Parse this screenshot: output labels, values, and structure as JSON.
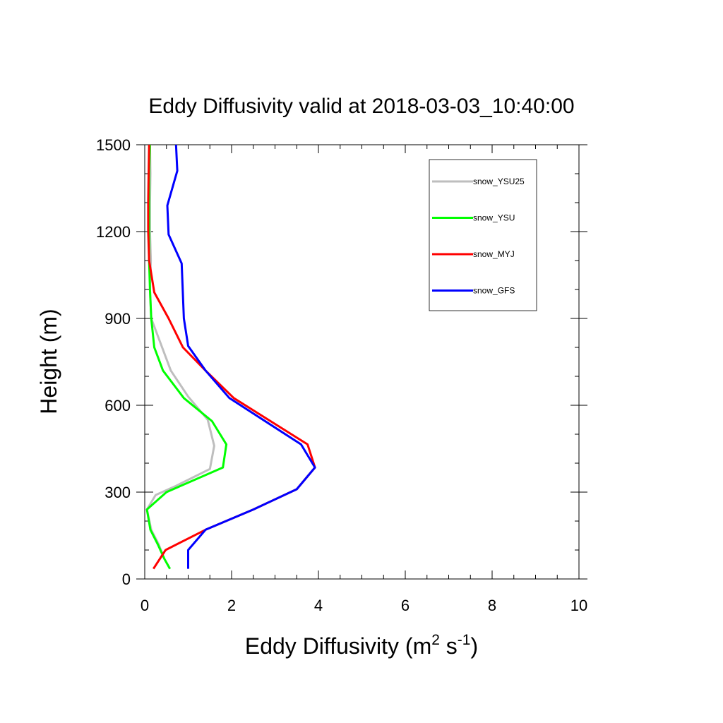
{
  "chart_data": {
    "type": "line",
    "title": "Eddy Diffusivity valid at 2018-03-03_10:40:00",
    "xlabel": {
      "prefix": "Eddy Diffusivity (m",
      "sup1": "2",
      "mid": " s",
      "sup2": "-1",
      "suffix": ")"
    },
    "ylabel": "Height (m)",
    "xlim": [
      0,
      10
    ],
    "ylim": [
      0,
      1500
    ],
    "xticks": [
      "0",
      "2",
      "4",
      "6",
      "8",
      "10"
    ],
    "yticks": [
      "0",
      "300",
      "600",
      "900",
      "1200",
      "1500"
    ],
    "grid": false,
    "legend_position": "top-right",
    "series": [
      {
        "name": "snow_YSU25",
        "color": "#bebebe",
        "points": [
          [
            0.58,
            35
          ],
          [
            0.45,
            70
          ],
          [
            0.32,
            120
          ],
          [
            0.15,
            170
          ],
          [
            0.05,
            240
          ],
          [
            0.25,
            290
          ],
          [
            0.7,
            320
          ],
          [
            1.5,
            380
          ],
          [
            1.6,
            460
          ],
          [
            1.45,
            550
          ],
          [
            1.0,
            630
          ],
          [
            0.6,
            720
          ],
          [
            0.4,
            800
          ],
          [
            0.15,
            900
          ],
          [
            0.12,
            1000
          ],
          [
            0.14,
            1100
          ],
          [
            0.12,
            1200
          ],
          [
            0.12,
            1300
          ],
          [
            0.13,
            1400
          ],
          [
            0.12,
            1500
          ]
        ]
      },
      {
        "name": "snow_YSU",
        "color": "#00ff00",
        "points": [
          [
            0.58,
            35
          ],
          [
            0.45,
            70
          ],
          [
            0.3,
            120
          ],
          [
            0.13,
            170
          ],
          [
            0.05,
            240
          ],
          [
            0.5,
            300
          ],
          [
            1.8,
            385
          ],
          [
            1.88,
            465
          ],
          [
            1.55,
            545
          ],
          [
            0.9,
            625
          ],
          [
            0.42,
            720
          ],
          [
            0.22,
            800
          ],
          [
            0.15,
            900
          ],
          [
            0.12,
            1000
          ],
          [
            0.1,
            1100
          ],
          [
            0.1,
            1200
          ],
          [
            0.1,
            1300
          ],
          [
            0.1,
            1400
          ],
          [
            0.12,
            1500
          ]
        ]
      },
      {
        "name": "snow_MYJ",
        "color": "#ff0000",
        "points": [
          [
            0.2,
            35
          ],
          [
            0.48,
            100
          ],
          [
            1.4,
            170
          ],
          [
            2.5,
            240
          ],
          [
            3.5,
            310
          ],
          [
            3.92,
            385
          ],
          [
            3.75,
            465
          ],
          [
            2.05,
            625
          ],
          [
            1.4,
            720
          ],
          [
            0.88,
            800
          ],
          [
            0.55,
            900
          ],
          [
            0.22,
            990
          ],
          [
            0.1,
            1100
          ],
          [
            0.08,
            1200
          ],
          [
            0.08,
            1300
          ],
          [
            0.09,
            1400
          ],
          [
            0.1,
            1500
          ]
        ]
      },
      {
        "name": "snow_GFS",
        "color": "#0000ff",
        "points": [
          [
            1.0,
            35
          ],
          [
            1.0,
            100
          ],
          [
            1.4,
            170
          ],
          [
            2.5,
            240
          ],
          [
            3.5,
            310
          ],
          [
            3.92,
            385
          ],
          [
            3.6,
            465
          ],
          [
            1.95,
            625
          ],
          [
            1.4,
            720
          ],
          [
            1.0,
            805
          ],
          [
            0.9,
            900
          ],
          [
            0.85,
            1090
          ],
          [
            0.55,
            1190
          ],
          [
            0.52,
            1290
          ],
          [
            0.75,
            1410
          ],
          [
            0.72,
            1500
          ]
        ]
      }
    ]
  }
}
